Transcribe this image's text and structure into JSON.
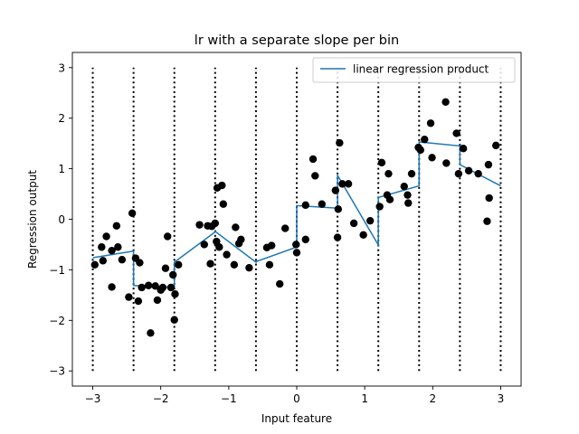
{
  "chart_data": {
    "type": "scatter",
    "title": "lr with a separate slope per bin",
    "xlabel": "Input feature",
    "ylabel": "Regression output",
    "xlim": [
      -3.3,
      3.3
    ],
    "ylim": [
      -3.3,
      3.3
    ],
    "xticks": [
      -3,
      -2,
      -1,
      0,
      1,
      2,
      3
    ],
    "xtick_labels": [
      "−3",
      "−2",
      "−1",
      "0",
      "1",
      "2",
      "3"
    ],
    "yticks": [
      -3,
      -2,
      -1,
      0,
      1,
      2,
      3
    ],
    "ytick_labels": [
      "−3",
      "−2",
      "−1",
      "0",
      "1",
      "2",
      "3"
    ],
    "grid": false,
    "legend": {
      "position": "top-right",
      "entries": [
        "linear regression product"
      ]
    },
    "bin_edges": [
      -3,
      -2.4,
      -1.8,
      -1.2,
      -0.6,
      0,
      0.6,
      1.2,
      1.8,
      2.4,
      3
    ],
    "bin_lines_y_range": [
      -3,
      3
    ],
    "series": [
      {
        "name": "linear regression product",
        "kind": "line",
        "color": "#1f77b4",
        "x": [
          -3.0,
          -2.4,
          -2.4,
          -1.8,
          -1.8,
          -1.2,
          -1.2,
          -0.6,
          -0.6,
          0.0,
          0.0,
          0.6,
          0.6,
          1.2,
          1.2,
          1.8,
          1.8,
          2.4,
          2.4,
          3.0
        ],
        "y": [
          -0.76,
          -0.63,
          -1.31,
          -1.35,
          -0.85,
          -0.25,
          -0.24,
          -0.85,
          -0.84,
          -0.55,
          0.27,
          0.22,
          0.87,
          -0.51,
          0.43,
          0.66,
          1.53,
          1.45,
          1.08,
          0.66
        ]
      },
      {
        "name": "",
        "kind": "scatter",
        "color": "#000000",
        "points": [
          [
            -2.97,
            -0.9
          ],
          [
            -2.87,
            -0.55
          ],
          [
            -2.85,
            -0.82
          ],
          [
            -2.8,
            -0.34
          ],
          [
            -2.72,
            -1.34
          ],
          [
            -2.72,
            -0.62
          ],
          [
            -2.65,
            -0.13
          ],
          [
            -2.63,
            -0.55
          ],
          [
            -2.57,
            -0.8
          ],
          [
            -2.47,
            -1.54
          ],
          [
            -2.42,
            0.12
          ],
          [
            -2.37,
            -0.77
          ],
          [
            -2.33,
            -1.62
          ],
          [
            -2.31,
            -0.86
          ],
          [
            -2.28,
            -1.35
          ],
          [
            -2.18,
            -1.31
          ],
          [
            -2.15,
            -2.25
          ],
          [
            -2.08,
            -1.32
          ],
          [
            -2.05,
            -1.6
          ],
          [
            -2.0,
            -1.4
          ],
          [
            -1.97,
            -1.35
          ],
          [
            -1.93,
            -0.97
          ],
          [
            -1.9,
            -0.34
          ],
          [
            -1.85,
            -1.35
          ],
          [
            -1.82,
            -1.1
          ],
          [
            -1.8,
            -1.99
          ],
          [
            -1.79,
            -1.48
          ],
          [
            -1.74,
            -0.9
          ],
          [
            -1.43,
            -0.11
          ],
          [
            -1.36,
            -0.5
          ],
          [
            -1.31,
            -0.13
          ],
          [
            -1.27,
            -0.88
          ],
          [
            -1.25,
            -0.14
          ],
          [
            -1.2,
            -0.08
          ],
          [
            -1.18,
            -0.44
          ],
          [
            -1.17,
            0.62
          ],
          [
            -1.14,
            -0.55
          ],
          [
            -1.1,
            0.67
          ],
          [
            -1.08,
            0.3
          ],
          [
            -1.03,
            -0.7
          ],
          [
            -0.92,
            -0.9
          ],
          [
            -0.9,
            -0.16
          ],
          [
            -0.85,
            -0.48
          ],
          [
            -0.82,
            -0.4
          ],
          [
            -0.7,
            -0.96
          ],
          [
            -0.44,
            -0.56
          ],
          [
            -0.4,
            -0.9
          ],
          [
            -0.37,
            -0.52
          ],
          [
            -0.25,
            -1.28
          ],
          [
            -0.17,
            -0.18
          ],
          [
            -0.01,
            -0.5
          ],
          [
            0.0,
            -0.66
          ],
          [
            0.13,
            0.28
          ],
          [
            0.13,
            -0.4
          ],
          [
            0.24,
            1.19
          ],
          [
            0.27,
            0.86
          ],
          [
            0.37,
            0.3
          ],
          [
            0.57,
            0.57
          ],
          [
            0.6,
            -0.36
          ],
          [
            0.61,
            0.2
          ],
          [
            0.63,
            1.51
          ],
          [
            0.67,
            0.7
          ],
          [
            0.76,
            0.7
          ],
          [
            0.84,
            -0.08
          ],
          [
            0.98,
            -0.31
          ],
          [
            1.08,
            -0.03
          ],
          [
            1.22,
            0.25
          ],
          [
            1.25,
            1.12
          ],
          [
            1.33,
            0.48
          ],
          [
            1.35,
            0.9
          ],
          [
            1.37,
            0.39
          ],
          [
            1.58,
            0.65
          ],
          [
            1.63,
            0.48
          ],
          [
            1.64,
            0.32
          ],
          [
            1.69,
            0.9
          ],
          [
            1.79,
            1.42
          ],
          [
            1.82,
            1.37
          ],
          [
            1.88,
            1.58
          ],
          [
            1.97,
            1.9
          ],
          [
            1.99,
            1.22
          ],
          [
            2.19,
            2.32
          ],
          [
            2.2,
            1.11
          ],
          [
            2.35,
            1.7
          ],
          [
            2.38,
            0.9
          ],
          [
            2.45,
            1.4
          ],
          [
            2.53,
            0.96
          ],
          [
            2.67,
            0.9
          ],
          [
            2.8,
            -0.04
          ],
          [
            2.82,
            1.08
          ],
          [
            2.83,
            0.42
          ],
          [
            2.93,
            1.46
          ]
        ]
      }
    ]
  }
}
